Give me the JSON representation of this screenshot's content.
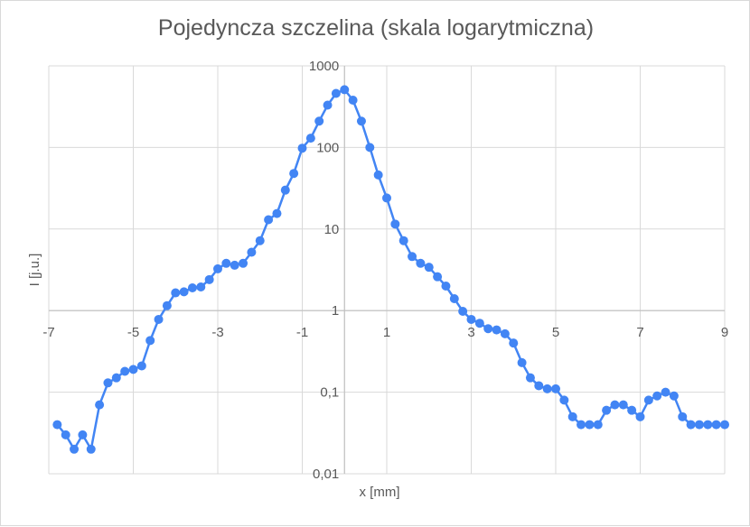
{
  "chart_data": {
    "type": "scatter",
    "title": "Pojedyncza szczelina (skala logarytmiczna)",
    "xlabel": "x [mm]",
    "ylabel": "I [j.u.]",
    "xlim": [
      -7,
      9
    ],
    "ylim": [
      0.01,
      1000
    ],
    "y_scale": "log",
    "grid": true,
    "legend": "none",
    "colors": {
      "series": "#4285f4",
      "grid": "#d9d9d9",
      "axis": "#bfbfbf",
      "text": "#595959"
    },
    "x_ticks": [
      {
        "value": -7,
        "label": "-7"
      },
      {
        "value": -5,
        "label": "-5"
      },
      {
        "value": -3,
        "label": "-3"
      },
      {
        "value": -1,
        "label": "-1"
      },
      {
        "value": 1,
        "label": "1"
      },
      {
        "value": 3,
        "label": "3"
      },
      {
        "value": 5,
        "label": "5"
      },
      {
        "value": 7,
        "label": "7"
      },
      {
        "value": 9,
        "label": "9"
      }
    ],
    "y_ticks": [
      {
        "value": 0.01,
        "label": "0,01"
      },
      {
        "value": 0.1,
        "label": "0,1"
      },
      {
        "value": 1,
        "label": "1"
      },
      {
        "value": 10,
        "label": "10"
      },
      {
        "value": 100,
        "label": "100"
      },
      {
        "value": 1000,
        "label": "1000"
      }
    ],
    "series": [
      {
        "x": [
          -6.8,
          -6.6,
          -6.4,
          -6.2,
          -6.0,
          -5.8,
          -5.6,
          -5.4,
          -5.2,
          -5.0,
          -4.8,
          -4.6,
          -4.4,
          -4.2,
          -4.0,
          -3.8,
          -3.6,
          -3.4,
          -3.2,
          -3.0,
          -2.8,
          -2.6,
          -2.4,
          -2.2,
          -2.0,
          -1.8,
          -1.6,
          -1.4,
          -1.2,
          -1.0,
          -0.8,
          -0.6,
          -0.4,
          -0.2,
          0.0,
          0.2,
          0.4,
          0.6,
          0.8,
          1.0,
          1.2,
          1.4,
          1.6,
          1.8,
          2.0,
          2.2,
          2.4,
          2.6,
          2.8,
          3.0,
          3.2,
          3.4,
          3.6,
          3.8,
          4.0,
          4.2,
          4.4,
          4.6,
          4.8,
          5.0,
          5.2,
          5.4,
          5.6,
          5.8,
          6.0,
          6.2,
          6.4,
          6.6,
          6.8,
          7.0,
          7.2,
          7.4,
          7.6,
          7.8,
          8.0,
          8.2,
          8.4,
          8.6,
          8.8,
          9.0
        ],
        "values": [
          0.04,
          0.03,
          0.02,
          0.03,
          0.02,
          0.07,
          0.13,
          0.15,
          0.18,
          0.19,
          0.21,
          0.43,
          0.78,
          1.15,
          1.65,
          1.7,
          1.9,
          1.95,
          2.4,
          3.25,
          3.8,
          3.6,
          3.8,
          5.2,
          7.2,
          13,
          15.5,
          30,
          48,
          98,
          130,
          210,
          330,
          460,
          510,
          380,
          210,
          100,
          46,
          24,
          11.5,
          7.2,
          4.6,
          3.8,
          3.4,
          2.6,
          2.0,
          1.4,
          0.98,
          0.78,
          0.7,
          0.6,
          0.58,
          0.52,
          0.4,
          0.23,
          0.15,
          0.12,
          0.11,
          0.11,
          0.08,
          0.05,
          0.04,
          0.04,
          0.04,
          0.06,
          0.07,
          0.07,
          0.06,
          0.05,
          0.08,
          0.09,
          0.1,
          0.09,
          0.05,
          0.04,
          0.04,
          0.04,
          0.04,
          0.04
        ]
      }
    ]
  }
}
